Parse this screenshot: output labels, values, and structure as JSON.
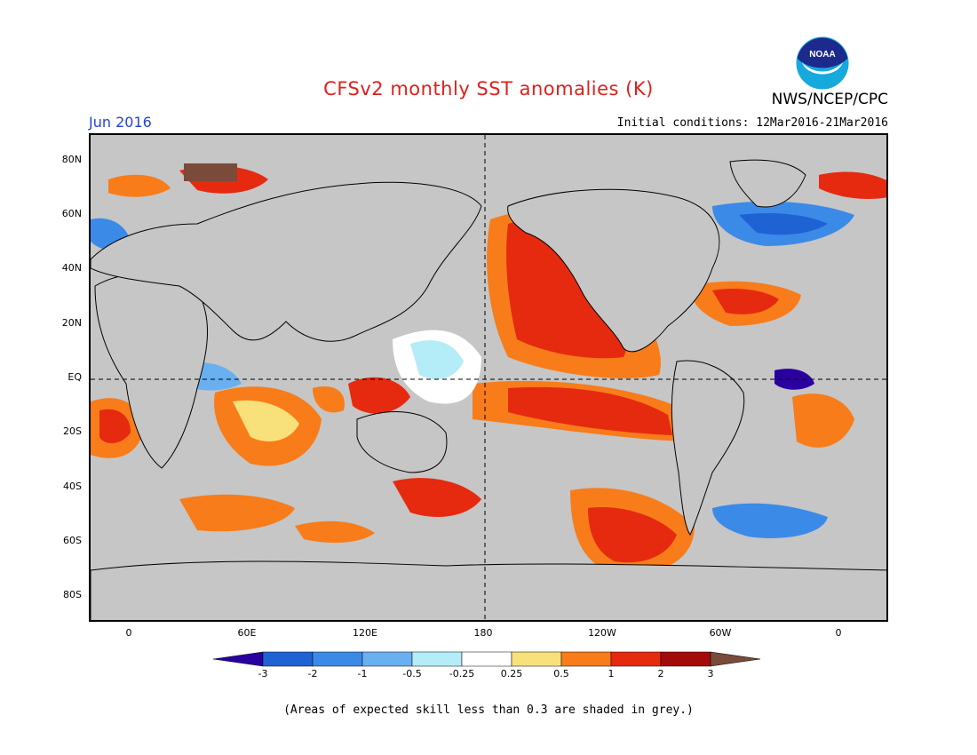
{
  "title": "CFSv2 monthly SST anomalies (K)",
  "agency": "NWS/NCEP/CPC",
  "logo_text": "NOAA",
  "month": "Jun 2016",
  "initial_conditions": "Initial conditions: 12Mar2016-21Mar2016",
  "footnote": "(Areas of expected skill less than 0.3 are shaded in grey.)",
  "map": {
    "lat_labels": [
      "80N",
      "60N",
      "40N",
      "20N",
      "EQ",
      "20S",
      "40S",
      "60S",
      "80S"
    ],
    "lon_labels": [
      "0",
      "60E",
      "120E",
      "180",
      "120W",
      "60W",
      "0"
    ],
    "grey_color": "#c6c6c6"
  },
  "colorbar": {
    "labels": [
      "-3",
      "-2",
      "-1",
      "-0.5",
      "-0.25",
      "0.25",
      "0.5",
      "1",
      "2",
      "3"
    ],
    "colors": [
      "#2a00a0",
      "#1e62d4",
      "#3c8ae8",
      "#69b0f0",
      "#b4ecf8",
      "#ffffff",
      "#f8e07a",
      "#f87c1a",
      "#e62a10",
      "#a50a0a",
      "#7a4a3a"
    ],
    "units": "K"
  }
}
